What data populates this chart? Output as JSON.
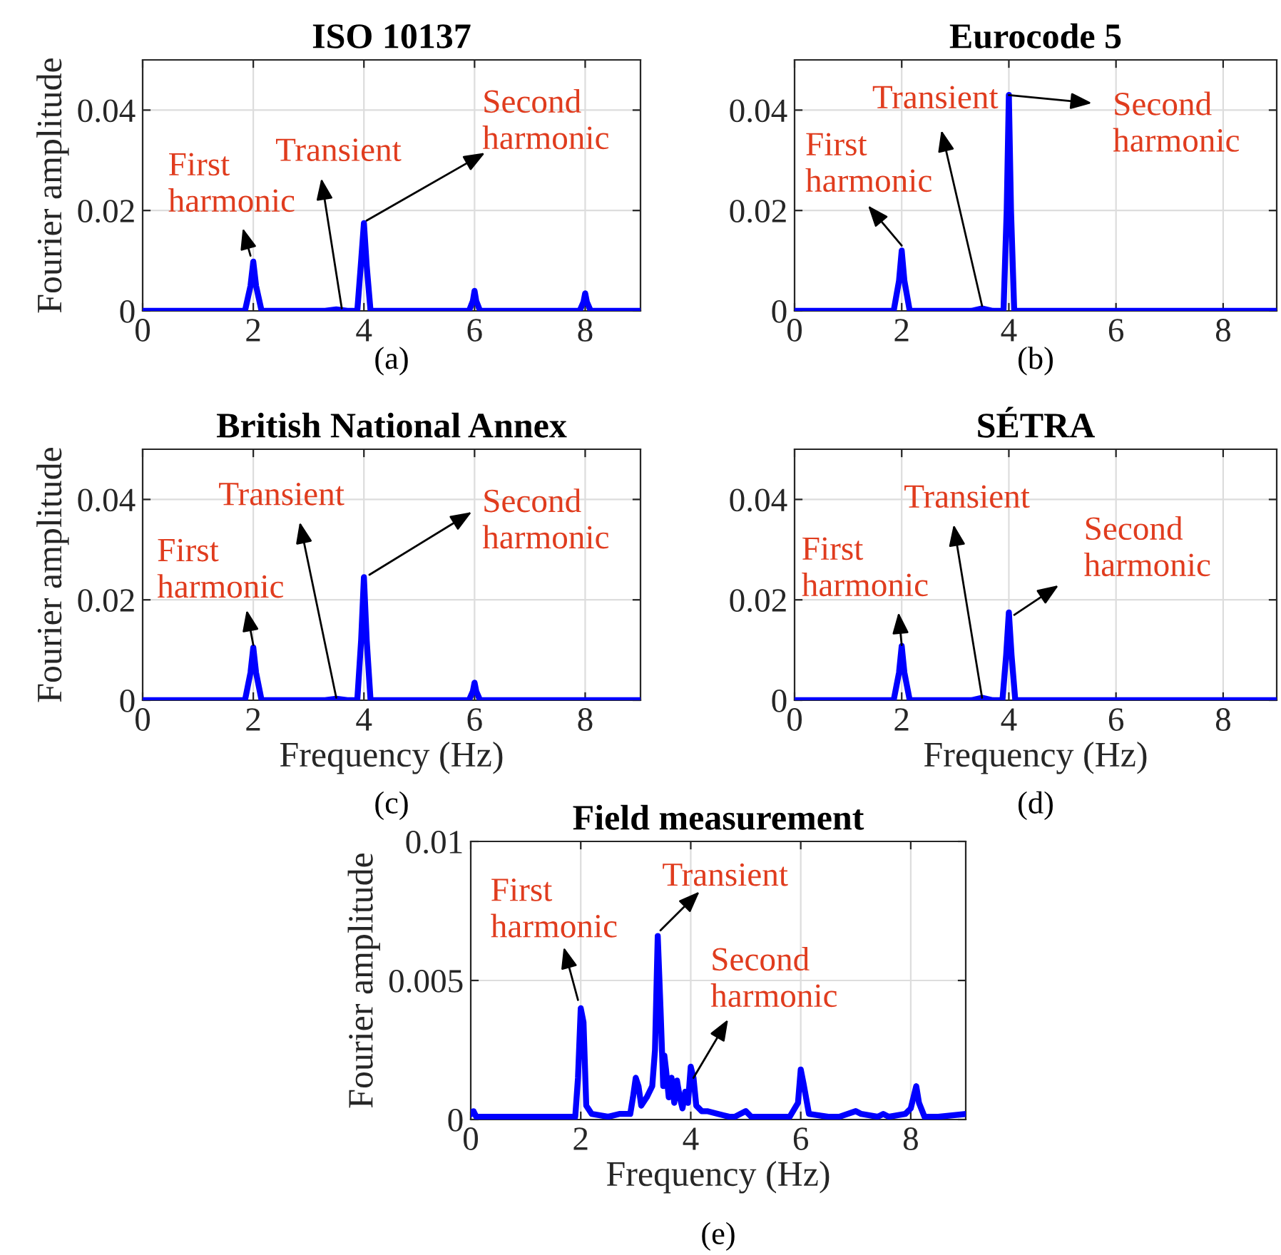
{
  "chart_data": [
    {
      "type": "line",
      "title": "ISO 10137",
      "ylabel": "Fourier amplitude",
      "xlim": [
        0,
        9
      ],
      "ylim": [
        0,
        0.05
      ],
      "xticks": [
        0,
        2,
        4,
        6,
        8
      ],
      "yticks": [
        0,
        0.02,
        0.04
      ],
      "grid": true,
      "x": [
        0,
        1.85,
        1.95,
        2.0,
        2.05,
        2.15,
        3.3,
        3.5,
        3.7,
        3.88,
        3.95,
        4.0,
        4.05,
        4.12,
        5.9,
        5.97,
        6.0,
        6.03,
        6.1,
        7.9,
        7.97,
        8.0,
        8.03,
        8.1,
        9
      ],
      "series": [
        {
          "color": "#0000ff",
          "values": [
            0,
            0,
            0.005,
            0.0098,
            0.005,
            0,
            0,
            0.0003,
            0,
            0,
            0.01,
            0.0175,
            0.009,
            0,
            0,
            0.002,
            0.004,
            0.002,
            0,
            0,
            0.0018,
            0.0035,
            0.0018,
            0,
            0
          ]
        }
      ],
      "annotations": [
        {
          "text": "First\nharmonic",
          "x": 1.95,
          "y": 0.011
        },
        {
          "text": "Transient",
          "x": 3.6,
          "y": 0.0005
        },
        {
          "text": "Second\nharmonic",
          "x": 4.05,
          "y": 0.018
        },
        "(a)"
      ]
    },
    {
      "type": "line",
      "title": "Eurocode 5",
      "xlim": [
        0,
        9
      ],
      "ylim": [
        0,
        0.05
      ],
      "xticks": [
        0,
        2,
        4,
        6,
        8
      ],
      "yticks": [
        0,
        0.02,
        0.04
      ],
      "grid": true,
      "x": [
        0,
        1.85,
        1.95,
        2.0,
        2.05,
        2.15,
        3.3,
        3.5,
        3.7,
        3.9,
        3.96,
        4.0,
        4.04,
        4.1,
        9
      ],
      "series": [
        {
          "color": "#0000ff",
          "values": [
            0,
            0,
            0.006,
            0.012,
            0.006,
            0,
            0,
            0.0005,
            0,
            0,
            0.02,
            0.043,
            0.02,
            0,
            0
          ]
        }
      ],
      "annotations": [
        {
          "text": "First\nharmonic",
          "x": 2.0,
          "y": 0.013
        },
        {
          "text": "Transient",
          "x": 3.5,
          "y": 0.001
        },
        {
          "text": "Second\nharmonic",
          "x": 4.0,
          "y": 0.043
        },
        "(b)"
      ]
    },
    {
      "type": "line",
      "title": "British National Annex",
      "xlabel": "Frequency (Hz)",
      "ylabel": "Fourier amplitude",
      "xlim": [
        0,
        9
      ],
      "ylim": [
        0,
        0.05
      ],
      "xticks": [
        0,
        2,
        4,
        6,
        8
      ],
      "yticks": [
        0,
        0.02,
        0.04
      ],
      "grid": true,
      "x": [
        0,
        1.85,
        1.95,
        2.0,
        2.05,
        2.15,
        3.3,
        3.5,
        3.7,
        3.88,
        3.95,
        4.0,
        4.05,
        4.12,
        5.9,
        5.97,
        6.0,
        6.03,
        6.1,
        9
      ],
      "series": [
        {
          "color": "#0000ff",
          "values": [
            0,
            0,
            0.0055,
            0.0105,
            0.0055,
            0,
            0,
            0.0003,
            0,
            0,
            0.012,
            0.0245,
            0.012,
            0,
            0,
            0.0018,
            0.0035,
            0.0018,
            0,
            0
          ]
        }
      ],
      "annotations": [
        {
          "text": "First\nharmonic",
          "x": 2.0,
          "y": 0.011
        },
        {
          "text": "Transient",
          "x": 3.5,
          "y": 0.0005
        },
        {
          "text": "Second\nharmonic",
          "x": 4.1,
          "y": 0.025
        },
        "(c)"
      ]
    },
    {
      "type": "line",
      "title": "SÉTRA",
      "xlabel": "Frequency (Hz)",
      "xlim": [
        0,
        9
      ],
      "ylim": [
        0,
        0.05
      ],
      "xticks": [
        0,
        2,
        4,
        6,
        8
      ],
      "yticks": [
        0,
        0.02,
        0.04
      ],
      "grid": true,
      "x": [
        0,
        1.85,
        1.95,
        2.0,
        2.05,
        2.15,
        3.3,
        3.5,
        3.7,
        3.88,
        3.95,
        4.0,
        4.05,
        4.12,
        9
      ],
      "series": [
        {
          "color": "#0000ff",
          "values": [
            0,
            0,
            0.0055,
            0.0108,
            0.0055,
            0,
            0,
            0.0005,
            0,
            0,
            0.009,
            0.0175,
            0.009,
            0,
            0
          ]
        }
      ],
      "annotations": [
        {
          "text": "First\nharmonic",
          "x": 2.0,
          "y": 0.011
        },
        {
          "text": "Transient",
          "x": 3.5,
          "y": 0.0005
        },
        {
          "text": "Second\nharmonic",
          "x": 4.1,
          "y": 0.017
        },
        "(d)"
      ]
    },
    {
      "type": "line",
      "title": "Field measurement",
      "xlabel": "Frequency (Hz)",
      "ylabel": "Fourier amplitude",
      "xlim": [
        0,
        9
      ],
      "ylim": [
        0,
        0.01
      ],
      "xticks": [
        0,
        2,
        4,
        6,
        8
      ],
      "yticks": [
        0,
        0.005,
        0.01
      ],
      "grid": true,
      "x": [
        0,
        0.05,
        0.1,
        0.5,
        1.5,
        1.9,
        1.95,
        2.0,
        2.05,
        2.1,
        2.2,
        2.5,
        2.7,
        2.9,
        2.95,
        3.0,
        3.05,
        3.1,
        3.2,
        3.3,
        3.35,
        3.4,
        3.45,
        3.5,
        3.52,
        3.55,
        3.6,
        3.65,
        3.7,
        3.75,
        3.8,
        3.85,
        3.9,
        3.95,
        4.0,
        4.05,
        4.1,
        4.2,
        4.3,
        4.5,
        4.7,
        4.8,
        5.0,
        5.1,
        5.5,
        5.8,
        5.95,
        6.0,
        6.05,
        6.15,
        6.5,
        6.7,
        7.0,
        7.1,
        7.4,
        7.5,
        7.6,
        7.9,
        8.0,
        8.1,
        8.15,
        8.25,
        8.5,
        9.0
      ],
      "series": [
        {
          "color": "#0000ff",
          "values": [
            0.0002,
            0.0003,
            0.0001,
            0.0001,
            0.0001,
            0.0001,
            0.0015,
            0.004,
            0.0035,
            0.0005,
            0.0002,
            0.0001,
            0.0002,
            0.0002,
            0.0008,
            0.0015,
            0.0012,
            0.0005,
            0.0008,
            0.0012,
            0.0025,
            0.0066,
            0.004,
            0.0012,
            0.0023,
            0.0018,
            0.0008,
            0.0015,
            0.0006,
            0.0014,
            0.0008,
            0.0004,
            0.001,
            0.0006,
            0.0019,
            0.0015,
            0.0005,
            0.0003,
            0.0003,
            0.0002,
            0.0001,
            0.0001,
            0.0003,
            0.0001,
            0.0001,
            0.0001,
            0.0006,
            0.0018,
            0.0013,
            0.0002,
            0.0001,
            0.0001,
            0.0003,
            0.0002,
            0.0001,
            0.0002,
            0.0001,
            0.0002,
            0.0004,
            0.0012,
            0.0006,
            0.0001,
            0.0001,
            0.0002
          ]
        }
      ],
      "annotations": [
        {
          "text": "First\nharmonic",
          "x": 1.95,
          "y": 0.0043
        },
        {
          "text": "Transient",
          "x": 3.45,
          "y": 0.0068
        },
        {
          "text": "Second\nharmonic",
          "x": 4.05,
          "y": 0.0015
        },
        "(e)"
      ]
    }
  ]
}
